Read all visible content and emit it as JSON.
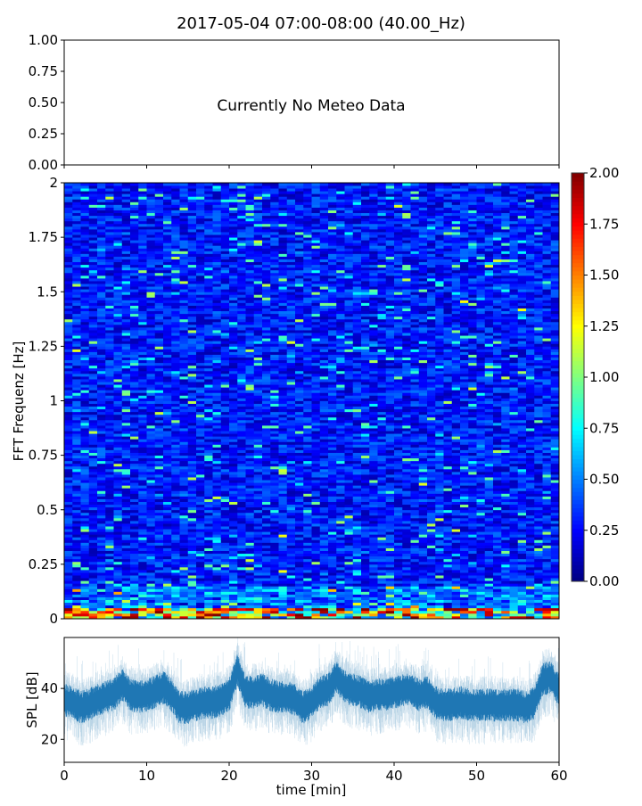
{
  "title": "2017-05-04 07:00-08:00 (40.00_Hz)",
  "chart_data": [
    {
      "type": "line",
      "panel": "meteo",
      "annotation": "Currently No Meteo Data",
      "ylim": [
        0,
        1
      ],
      "yticks": [
        "0.00",
        "0.25",
        "0.50",
        "0.75",
        "1.00"
      ],
      "xlim": [
        0,
        60
      ],
      "series": []
    },
    {
      "type": "heatmap",
      "panel": "spectrogram",
      "ylabel": "FFT Frequenz [Hz]",
      "xlim": [
        0,
        60
      ],
      "ylim": [
        0,
        2
      ],
      "yticks": [
        "0",
        "0.25",
        "0.5",
        "0.75",
        "1",
        "1.25",
        "1.5",
        "1.75",
        "2"
      ],
      "colormap": "jet",
      "clim": [
        0,
        2
      ],
      "colorbar_ticks": [
        "0.00",
        "0.25",
        "0.50",
        "0.75",
        "1.00",
        "1.25",
        "1.50",
        "1.75",
        "2.00"
      ],
      "typical_value": 0.3,
      "low_freq_value": 1.0
    },
    {
      "type": "line",
      "panel": "spl",
      "xlabel": "time [min]",
      "ylabel": "SPL [dB]",
      "xlim": [
        0,
        60
      ],
      "ylim": [
        11,
        60
      ],
      "xticks": [
        "0",
        "10",
        "20",
        "30",
        "40",
        "50",
        "60"
      ],
      "yticks": [
        "20",
        "40"
      ],
      "color": "#1f77b4",
      "minute_mean_db": [
        36,
        35,
        33,
        34,
        36,
        37,
        38,
        42,
        38,
        37,
        38,
        39,
        41,
        38,
        33,
        33,
        34,
        35,
        35,
        36,
        38,
        48,
        39,
        39,
        40,
        38,
        37,
        37,
        36,
        33,
        35,
        39,
        40,
        45,
        41,
        40,
        39,
        37,
        38,
        38,
        39,
        40,
        40,
        38,
        39,
        35,
        34,
        34,
        35,
        34,
        34,
        34,
        34,
        34,
        34,
        34,
        33,
        35,
        44,
        45,
        40
      ]
    }
  ]
}
